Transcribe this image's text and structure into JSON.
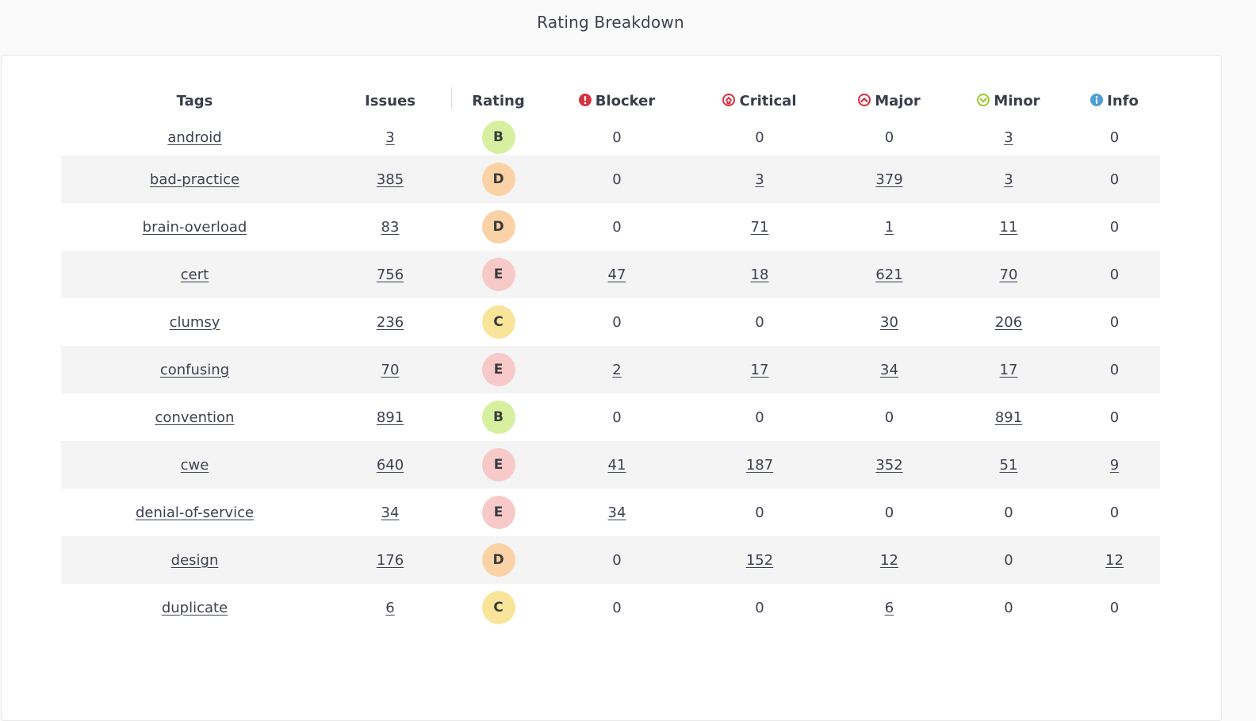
{
  "page": {
    "title": "Rating Breakdown"
  },
  "colors": {
    "blocker": "#d4333f",
    "critical": "#d4333f",
    "major": "#d4333f",
    "minor": "#9ecb2f",
    "info": "#4b9fd5",
    "rating_B": "#d6f0a0",
    "rating_C": "#f8e59a",
    "rating_D": "#fbd2a6",
    "rating_E": "#f8c9c9"
  },
  "table": {
    "headers": {
      "tags": "Tags",
      "issues": "Issues",
      "rating": "Rating",
      "blocker": "Blocker",
      "critical": "Critical",
      "major": "Major",
      "minor": "Minor",
      "info": "Info"
    },
    "header_icons": {
      "blocker": "blocker-icon",
      "critical": "critical-icon",
      "major": "major-icon",
      "minor": "minor-icon",
      "info": "info-icon"
    },
    "rows": [
      {
        "tag": "android",
        "issues": "3",
        "rating": "B",
        "blocker": "0",
        "critical": "0",
        "major": "0",
        "minor": "3",
        "info": "0"
      },
      {
        "tag": "bad-practice",
        "issues": "385",
        "rating": "D",
        "blocker": "0",
        "critical": "3",
        "major": "379",
        "minor": "3",
        "info": "0"
      },
      {
        "tag": "brain-overload",
        "issues": "83",
        "rating": "D",
        "blocker": "0",
        "critical": "71",
        "major": "1",
        "minor": "11",
        "info": "0"
      },
      {
        "tag": "cert",
        "issues": "756",
        "rating": "E",
        "blocker": "47",
        "critical": "18",
        "major": "621",
        "minor": "70",
        "info": "0"
      },
      {
        "tag": "clumsy",
        "issues": "236",
        "rating": "C",
        "blocker": "0",
        "critical": "0",
        "major": "30",
        "minor": "206",
        "info": "0"
      },
      {
        "tag": "confusing",
        "issues": "70",
        "rating": "E",
        "blocker": "2",
        "critical": "17",
        "major": "34",
        "minor": "17",
        "info": "0"
      },
      {
        "tag": "convention",
        "issues": "891",
        "rating": "B",
        "blocker": "0",
        "critical": "0",
        "major": "0",
        "minor": "891",
        "info": "0"
      },
      {
        "tag": "cwe",
        "issues": "640",
        "rating": "E",
        "blocker": "41",
        "critical": "187",
        "major": "352",
        "minor": "51",
        "info": "9"
      },
      {
        "tag": "denial-of-service",
        "issues": "34",
        "rating": "E",
        "blocker": "34",
        "critical": "0",
        "major": "0",
        "minor": "0",
        "info": "0"
      },
      {
        "tag": "design",
        "issues": "176",
        "rating": "D",
        "blocker": "0",
        "critical": "152",
        "major": "12",
        "minor": "0",
        "info": "12"
      },
      {
        "tag": "duplicate",
        "issues": "6",
        "rating": "C",
        "blocker": "0",
        "critical": "0",
        "major": "6",
        "minor": "0",
        "info": "0"
      }
    ]
  }
}
